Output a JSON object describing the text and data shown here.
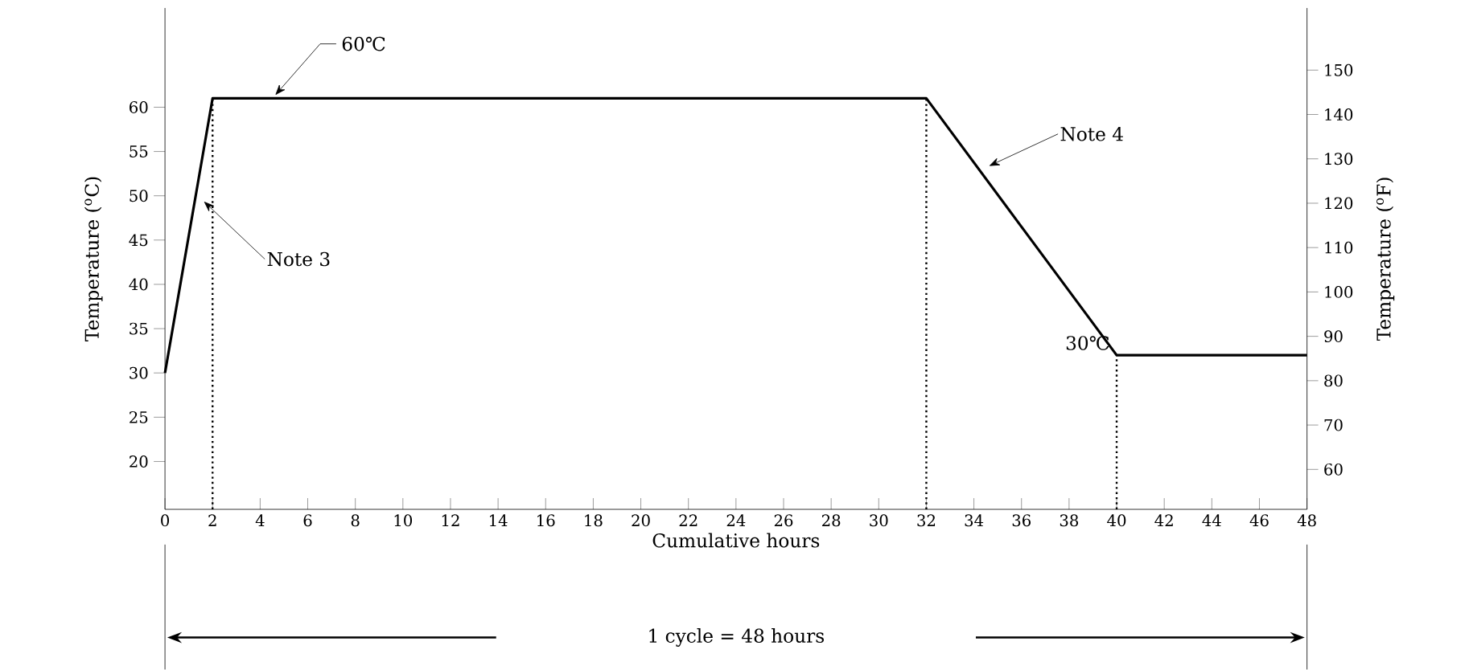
{
  "chart_data": {
    "type": "line",
    "x": [
      0,
      2,
      32,
      40,
      48
    ],
    "series": [
      {
        "color": "#000000",
        "values": [
          30,
          61,
          61,
          32,
          32
        ]
      }
    ],
    "xlabel": "Cumulative hours",
    "ylabel": "Temperature ($^{o}$C)",
    "y2label": "Temperature ($^{o}$F)",
    "xlim": [
      0,
      48
    ],
    "ylim": [
      14.6,
      71.2
    ],
    "y2lim": [
      51,
      164
    ],
    "xticks": [
      0,
      2,
      4,
      6,
      8,
      10,
      12,
      14,
      16,
      18,
      20,
      22,
      24,
      26,
      28,
      30,
      32,
      34,
      36,
      38,
      40,
      42,
      44,
      46,
      48
    ],
    "yticks": [
      20,
      25,
      30,
      35,
      40,
      45,
      50,
      55,
      60
    ],
    "y2ticks": [
      60,
      70,
      80,
      90,
      100,
      110,
      120,
      130,
      140,
      150
    ],
    "ref_lines": [
      {
        "axis": "x",
        "value": 2,
        "line_style": "dotted"
      },
      {
        "axis": "x",
        "value": 32,
        "line_style": "dotted"
      },
      {
        "axis": "x",
        "value": 40,
        "line_style": "dotted"
      }
    ],
    "annotations": [
      {
        "text": "60℃",
        "x": 4.5,
        "y": 61
      },
      {
        "text": "Note 3",
        "x": 1.5,
        "y": 49
      },
      {
        "text": "Note 4",
        "x": 34.5,
        "y": 53
      },
      {
        "text": "30℃",
        "x": 40,
        "y": 32
      },
      "1 cycle = 48 hours"
    ],
    "grid": false,
    "marker": "none",
    "line_style": "solid"
  }
}
